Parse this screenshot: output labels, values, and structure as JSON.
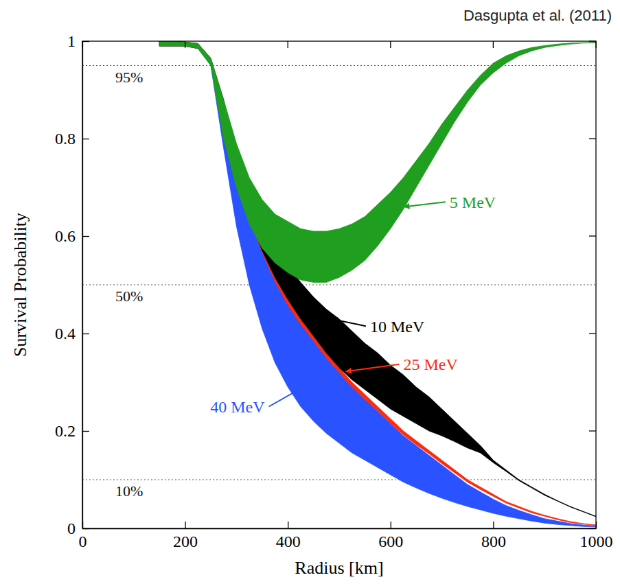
{
  "chart_data": {
    "type": "area",
    "title": "Dasgupta et al. (2011)",
    "x_label": "Radius [km]",
    "y_label": "Survival Probability",
    "xlim": [
      0,
      1000
    ],
    "xticks": [
      0,
      200,
      400,
      600,
      800,
      1000
    ],
    "ylim": [
      0,
      1
    ],
    "yticks": [
      0,
      0.2,
      0.4,
      0.6,
      0.8,
      1
    ],
    "hlines": [
      {
        "value": 0.95,
        "label": "95%"
      },
      {
        "value": 0.5,
        "label": "50%"
      },
      {
        "value": 0.1,
        "label": "10%"
      }
    ],
    "x": [
      150,
      175,
      200,
      225,
      250,
      275,
      300,
      325,
      350,
      375,
      400,
      425,
      450,
      475,
      500,
      525,
      550,
      575,
      600,
      625,
      650,
      675,
      700,
      725,
      750,
      775,
      800,
      825,
      850,
      875,
      900,
      925,
      950,
      975,
      1000
    ],
    "series": [
      {
        "name": "5 MeV",
        "color": "#1f9e1f",
        "values": [
          1,
          1,
          0.998,
          0.995,
          0.965,
          0.88,
          0.79,
          0.72,
          0.675,
          0.645,
          0.63,
          0.615,
          0.61,
          0.61,
          0.615,
          0.625,
          0.64,
          0.665,
          0.69,
          0.72,
          0.755,
          0.79,
          0.83,
          0.865,
          0.9,
          0.93,
          0.955,
          0.97,
          0.98,
          0.987,
          0.991,
          0.994,
          0.996,
          0.997,
          0.998
        ],
        "lower": [
          0.99,
          0.99,
          0.99,
          0.985,
          0.95,
          0.8,
          0.7,
          0.625,
          0.575,
          0.545,
          0.525,
          0.51,
          0.505,
          0.505,
          0.515,
          0.53,
          0.55,
          0.58,
          0.615,
          0.655,
          0.7,
          0.745,
          0.79,
          0.835,
          0.875,
          0.91,
          0.935,
          0.955,
          0.97,
          0.98,
          0.987,
          0.991,
          0.994,
          0.996,
          0.997
        ],
        "annotation": {
          "x": 715,
          "y": 0.67,
          "arrow_x": 625,
          "arrow_y": 0.66
        }
      },
      {
        "name": "10 MeV",
        "color": "#000000",
        "values": [
          1,
          1,
          0.998,
          0.995,
          0.965,
          0.88,
          0.77,
          0.69,
          0.63,
          0.58,
          0.54,
          0.505,
          0.475,
          0.45,
          0.43,
          0.405,
          0.38,
          0.36,
          0.335,
          0.315,
          0.29,
          0.27,
          0.245,
          0.22,
          0.195,
          0.17,
          0.14,
          0.12,
          0.1,
          0.085,
          0.07,
          0.057,
          0.045,
          0.035,
          0.025
        ],
        "lower": [
          0.99,
          0.99,
          0.99,
          0.985,
          0.955,
          0.85,
          0.73,
          0.64,
          0.57,
          0.515,
          0.47,
          0.43,
          0.395,
          0.36,
          0.33,
          0.305,
          0.285,
          0.265,
          0.245,
          0.23,
          0.215,
          0.2,
          0.19,
          0.178,
          0.165,
          0.155,
          0.135,
          0.117,
          0.098,
          0.083,
          0.068,
          0.056,
          0.044,
          0.034,
          0.024
        ],
        "annotation": {
          "x": 560,
          "y": 0.415,
          "arrow_x": 485,
          "arrow_y": 0.43
        }
      },
      {
        "name": "25 MeV",
        "color": "#ff2a0a",
        "values": [
          1,
          1,
          0.998,
          0.995,
          0.96,
          0.86,
          0.74,
          0.65,
          0.58,
          0.52,
          0.47,
          0.43,
          0.395,
          0.36,
          0.33,
          0.3,
          0.275,
          0.25,
          0.225,
          0.2,
          0.18,
          0.16,
          0.14,
          0.12,
          0.1,
          0.085,
          0.07,
          0.055,
          0.045,
          0.035,
          0.027,
          0.02,
          0.014,
          0.01,
          0.007
        ],
        "lower": [
          0.99,
          0.99,
          0.99,
          0.985,
          0.955,
          0.85,
          0.728,
          0.637,
          0.567,
          0.507,
          0.458,
          0.419,
          0.385,
          0.35,
          0.32,
          0.29,
          0.265,
          0.241,
          0.216,
          0.192,
          0.172,
          0.153,
          0.133,
          0.114,
          0.095,
          0.08,
          0.066,
          0.052,
          0.042,
          0.032,
          0.025,
          0.018,
          0.012,
          0.009,
          0.006
        ],
        "annotation": {
          "x": 625,
          "y": 0.337,
          "arrow_x": 512,
          "arrow_y": 0.322
        }
      },
      {
        "name": "40 MeV",
        "color": "#2a52ff",
        "values": [
          1,
          1,
          0.998,
          0.995,
          0.96,
          0.85,
          0.73,
          0.64,
          0.57,
          0.51,
          0.46,
          0.42,
          0.385,
          0.35,
          0.32,
          0.29,
          0.265,
          0.24,
          0.215,
          0.19,
          0.17,
          0.15,
          0.13,
          0.11,
          0.09,
          0.075,
          0.06,
          0.047,
          0.037,
          0.028,
          0.02,
          0.015,
          0.01,
          0.007,
          0.005
        ],
        "lower": [
          0.99,
          0.99,
          0.99,
          0.985,
          0.95,
          0.78,
          0.62,
          0.5,
          0.41,
          0.34,
          0.29,
          0.25,
          0.22,
          0.195,
          0.175,
          0.155,
          0.14,
          0.125,
          0.11,
          0.095,
          0.083,
          0.072,
          0.062,
          0.053,
          0.045,
          0.038,
          0.031,
          0.025,
          0.02,
          0.015,
          0.011,
          0.008,
          0.006,
          0.004,
          0.003
        ],
        "annotation": {
          "x": 355,
          "y": 0.25,
          "arrow_x": 430,
          "arrow_y": 0.29
        }
      }
    ]
  }
}
